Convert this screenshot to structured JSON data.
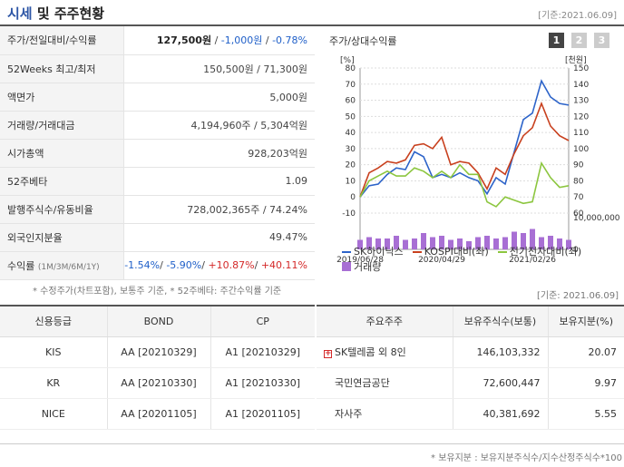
{
  "header": {
    "title_highlight": "시세",
    "title_rest": " 및 주주현황",
    "date": "[기준:2021.06.09]"
  },
  "price": {
    "rows": [
      {
        "label": "주가/전일대비/수익률",
        "v1": "127,500원",
        "v2": "-1,000원",
        "v3": "-0.78%"
      },
      {
        "label": "52Weeks 최고/최저",
        "value": "150,500원 / 71,300원"
      },
      {
        "label": "액면가",
        "value": "5,000원"
      },
      {
        "label": "거래량/거래대금",
        "value": "4,194,960주 / 5,304억원"
      },
      {
        "label": "시가총액",
        "value": "928,203억원"
      },
      {
        "label": "52주베타",
        "value": "1.09"
      },
      {
        "label": "발행주식수/유동비율",
        "value": "728,002,365주 / 74.24%"
      },
      {
        "label": "외국인지분율",
        "value": "49.47%"
      }
    ],
    "returns": {
      "label": "수익률",
      "sub": "(1M/3M/6M/1Y)",
      "r1": "-1.54%",
      "r2": "-5.90%",
      "r3": "+10.87%",
      "r4": "+40.11%"
    }
  },
  "chart": {
    "title": "주가/상대수익률",
    "buttons": [
      "1",
      "2",
      "3"
    ],
    "legend": [
      {
        "label": "SK하이닉스",
        "color": "#2c63c9"
      },
      {
        "label": "KOSPI대비(좌)",
        "color": "#c8401e"
      },
      {
        "label": "전기전자대비(좌)",
        "color": "#8cc63f"
      }
    ],
    "volume_legend": {
      "label": "거래량",
      "color": "#a86fd4"
    }
  },
  "chart_data": {
    "type": "line",
    "x": [
      "2019/06/28",
      "2019/08",
      "2019/09",
      "2019/10",
      "2019/11",
      "2019/12",
      "2020/01",
      "2020/02",
      "2020/03",
      "2020/04/29",
      "2020/05",
      "2020/06",
      "2020/07",
      "2020/08",
      "2020/09",
      "2020/10",
      "2020/11",
      "2020/12",
      "2021/01",
      "2021/02/26",
      "2021/03",
      "2021/04",
      "2021/05",
      "2021/06"
    ],
    "x_tick_labels": [
      "2019/06/28",
      "2020/04/29",
      "2021/02/26"
    ],
    "left_axis": {
      "unit": "[%]",
      "range": [
        -10,
        80
      ],
      "ticks": [
        -10,
        0,
        10,
        20,
        30,
        40,
        50,
        60,
        70,
        80
      ]
    },
    "right_axis": {
      "unit": "[천원]",
      "range": [
        60,
        150
      ],
      "ticks": [
        60,
        70,
        80,
        90,
        100,
        110,
        120,
        130,
        140,
        150
      ]
    },
    "volume_axis": {
      "max_label": "10,000,000",
      "min_label": "0",
      "max": 10000000
    },
    "series": [
      {
        "name": "SK하이닉스",
        "axis": "left",
        "values": [
          0,
          7,
          8,
          14,
          18,
          17,
          28,
          25,
          12,
          14,
          12,
          15,
          12,
          10,
          2,
          12,
          8,
          28,
          48,
          52,
          72,
          62,
          58,
          57
        ]
      },
      {
        "name": "KOSPI대비(좌)",
        "axis": "left",
        "values": [
          0,
          15,
          18,
          22,
          21,
          23,
          32,
          33,
          30,
          37,
          20,
          22,
          21,
          15,
          5,
          18,
          14,
          27,
          38,
          43,
          58,
          44,
          38,
          35
        ]
      },
      {
        "name": "전기전자대비(좌)",
        "axis": "left",
        "values": [
          0,
          10,
          13,
          16,
          13,
          13,
          18,
          16,
          12,
          16,
          12,
          20,
          14,
          14,
          -3,
          -6,
          0,
          -2,
          -4,
          -3,
          21,
          12,
          6,
          7
        ]
      },
      {
        "name": "거래량",
        "axis": "volume",
        "values": [
          3500000,
          4500000,
          4000000,
          4000000,
          5000000,
          3500000,
          4000000,
          6000000,
          4500000,
          5000000,
          3500000,
          4000000,
          3000000,
          4500000,
          5000000,
          4000000,
          4500000,
          6500000,
          6000000,
          7500000,
          4500000,
          5000000,
          4000000,
          3500000
        ]
      }
    ]
  },
  "notes": {
    "price_note": "* 수정주가(차트포함), 보통주 기준, * 52주베타: 주간수익률 기준",
    "date2": "[기준: 2021.06.09]",
    "bottom_note": "* 보유지분 : 보유지분주식수/지수산정주식수*100"
  },
  "credit": {
    "headers": [
      "신용등급",
      "BOND",
      "CP"
    ],
    "rows": [
      {
        "agency": "KIS",
        "bond": "AA [20210329]",
        "cp": "A1 [20210329]"
      },
      {
        "agency": "KR",
        "bond": "AA [20210330]",
        "cp": "A1 [20210330]"
      },
      {
        "agency": "NICE",
        "bond": "AA [20201105]",
        "cp": "A1 [20201105]"
      }
    ]
  },
  "holders": {
    "headers": [
      "주요주주",
      "보유주식수(보통)",
      "보유지분(%)"
    ],
    "rows": [
      {
        "name": "SK텔레콤 외 8인",
        "shares": "146,103,332",
        "pct": "20.07",
        "expandable": true
      },
      {
        "name": "국민연금공단",
        "shares": "72,600,447",
        "pct": "9.97"
      },
      {
        "name": "자사주",
        "shares": "40,381,692",
        "pct": "5.55"
      }
    ]
  }
}
